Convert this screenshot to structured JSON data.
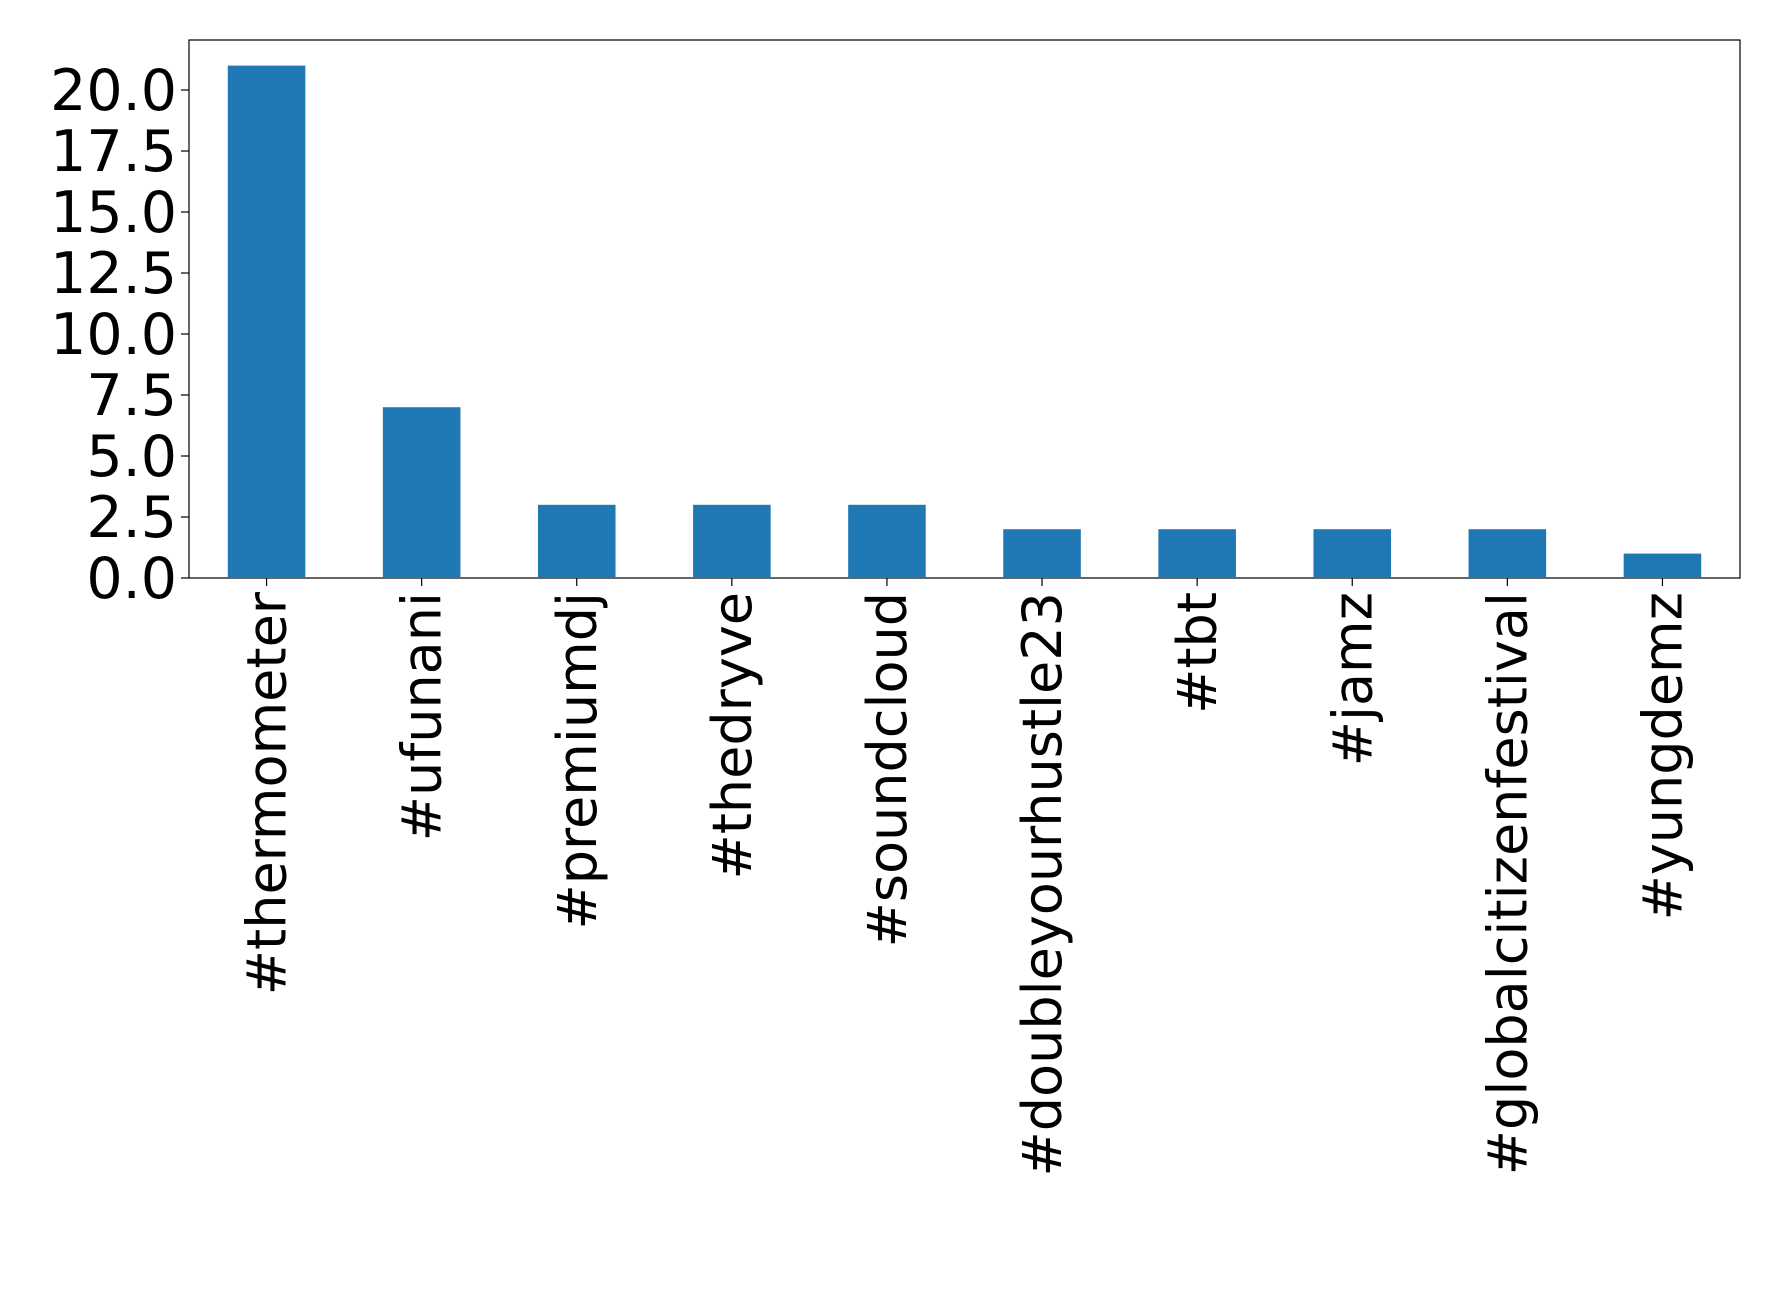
{
  "chart_data": {
    "type": "bar",
    "categories": [
      "#thermometer",
      "#ufunani",
      "#premiumdj",
      "#thedryve",
      "#soundcloud",
      "#doubleyourhustle23",
      "#tbt",
      "#jamz",
      "#globalcitizenfestival",
      "#yungdemz"
    ],
    "values": [
      21,
      7,
      3,
      3,
      3,
      2,
      2,
      2,
      2,
      1
    ],
    "color": "#1f77b4",
    "ylim": [
      0,
      22.05
    ],
    "yticks": [
      {
        "value": 0,
        "label": "0.0"
      },
      2.5,
      {
        "value": 5,
        "label": "5.0"
      },
      7.5,
      {
        "value": 10,
        "label": "10.0"
      },
      12.5,
      {
        "value": 15,
        "label": "15.0"
      },
      17.5,
      {
        "value": 20,
        "label": "20.0"
      }
    ],
    "grid": false
  }
}
